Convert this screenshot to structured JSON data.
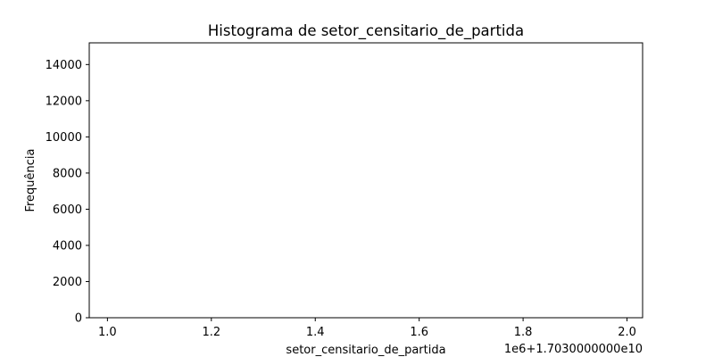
{
  "chart_data": {
    "type": "bar",
    "title": "Histograma de setor_censitario_de_partida",
    "xlabel": "setor_censitario_de_partida",
    "ylabel": "Frequência",
    "x_offset_label": "1e6+1.7030000000e10",
    "xlim": [
      0.965,
      2.03
    ],
    "ylim": [
      0,
      15200
    ],
    "x_ticks": [
      1.0,
      1.2,
      1.4,
      1.6,
      1.8,
      2.0
    ],
    "x_tick_labels": [
      "1.0",
      "1.2",
      "1.4",
      "1.6",
      "1.8",
      "2.0"
    ],
    "y_ticks": [
      0,
      2000,
      4000,
      6000,
      8000,
      10000,
      12000,
      14000
    ],
    "y_tick_labels": [
      "0",
      "2000",
      "4000",
      "6000",
      "8000",
      "10000",
      "12000",
      "14000"
    ],
    "grid": false,
    "bins": [],
    "values": []
  }
}
